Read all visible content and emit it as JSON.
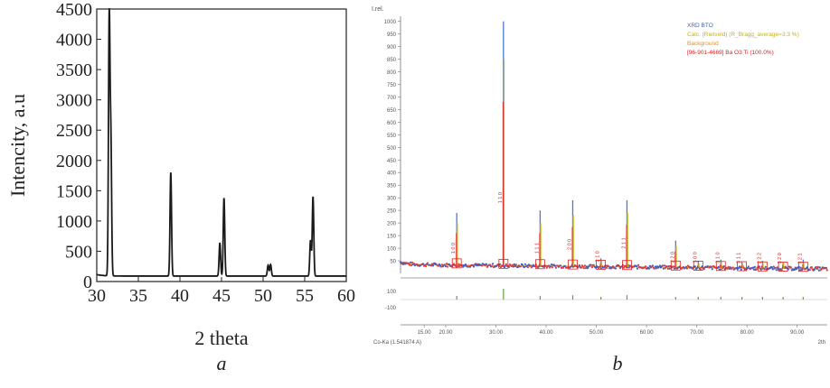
{
  "captions": {
    "a": "a",
    "b": "b"
  },
  "chart_data": [
    {
      "type": "line",
      "xlabel": "2 theta",
      "ylabel": "Intencity, a.u",
      "xlim": [
        30,
        60
      ],
      "ylim": [
        0,
        4500
      ],
      "xticks": [
        30,
        35,
        40,
        45,
        50,
        55,
        60
      ],
      "yticks": [
        0,
        500,
        1000,
        1500,
        2000,
        2500,
        3000,
        3500,
        4000,
        4500
      ],
      "baseline": 90,
      "peaks": [
        {
          "x": 31.5,
          "y": 4350
        },
        {
          "x": 31.7,
          "y": 2250
        },
        {
          "x": 38.9,
          "y": 1800
        },
        {
          "x": 44.8,
          "y": 640
        },
        {
          "x": 45.3,
          "y": 1380
        },
        {
          "x": 50.6,
          "y": 270
        },
        {
          "x": 50.9,
          "y": 280
        },
        {
          "x": 55.7,
          "y": 680
        },
        {
          "x": 56.0,
          "y": 1400
        }
      ],
      "series_color": "#1a1a1a"
    },
    {
      "type": "line",
      "ylabel": "I.rel.",
      "xlabel": "2th",
      "x_footer": "Co-Ka (1.541874 A)",
      "xticks": [
        "15.00",
        "20.00",
        "30.00",
        "40.00",
        "50.00",
        "60.00",
        "70.00",
        "80.00",
        "90.00"
      ],
      "yticks": [
        "1000",
        "950",
        "900",
        "850",
        "800",
        "750",
        "700",
        "650",
        "600",
        "550",
        "500",
        "450",
        "400",
        "350",
        "300",
        "250",
        "200",
        "150",
        "100",
        "50"
      ],
      "diff_ticks": [
        "100",
        "-100"
      ],
      "legend": [
        {
          "label": "XRD BTO",
          "color": "#3a5fc8"
        },
        {
          "label": "Calc. (Rietveld) (R_Bragg_average=3.3 %)",
          "color": "#c8b400"
        },
        {
          "label": "Background",
          "color": "#e89020"
        },
        {
          "label": "[96-901-4669] Ba O3 Ti  (100.0%)",
          "color": "#e02020"
        }
      ],
      "peaks": [
        {
          "x": 22.2,
          "obs": 240,
          "calc": 200,
          "label": "1 0 0"
        },
        {
          "x": 31.5,
          "obs": 1000,
          "calc": 850,
          "label": "1 1 0"
        },
        {
          "x": 38.8,
          "obs": 250,
          "calc": 200,
          "label": "1 1 1"
        },
        {
          "x": 45.3,
          "obs": 290,
          "calc": 230,
          "label": "2 0 0"
        },
        {
          "x": 50.9,
          "obs": 60,
          "calc": 50,
          "label": "2 1 0"
        },
        {
          "x": 56.1,
          "obs": 290,
          "calc": 240,
          "label": "2 1 1"
        },
        {
          "x": 65.8,
          "obs": 130,
          "calc": 110,
          "label": "2 2 0"
        },
        {
          "x": 70.3,
          "obs": 50,
          "calc": 40,
          "label": "3 0 0"
        },
        {
          "x": 74.8,
          "obs": 55,
          "calc": 45,
          "label": "3 1 0"
        },
        {
          "x": 79.0,
          "obs": 45,
          "calc": 40,
          "label": "3 1 1"
        },
        {
          "x": 83.1,
          "obs": 50,
          "calc": 40,
          "label": "2 2 2"
        },
        {
          "x": 87.2,
          "obs": 45,
          "calc": 40,
          "label": "3 2 0"
        },
        {
          "x": 91.2,
          "obs": 55,
          "calc": 45,
          "label": "3 2 1"
        }
      ]
    }
  ]
}
